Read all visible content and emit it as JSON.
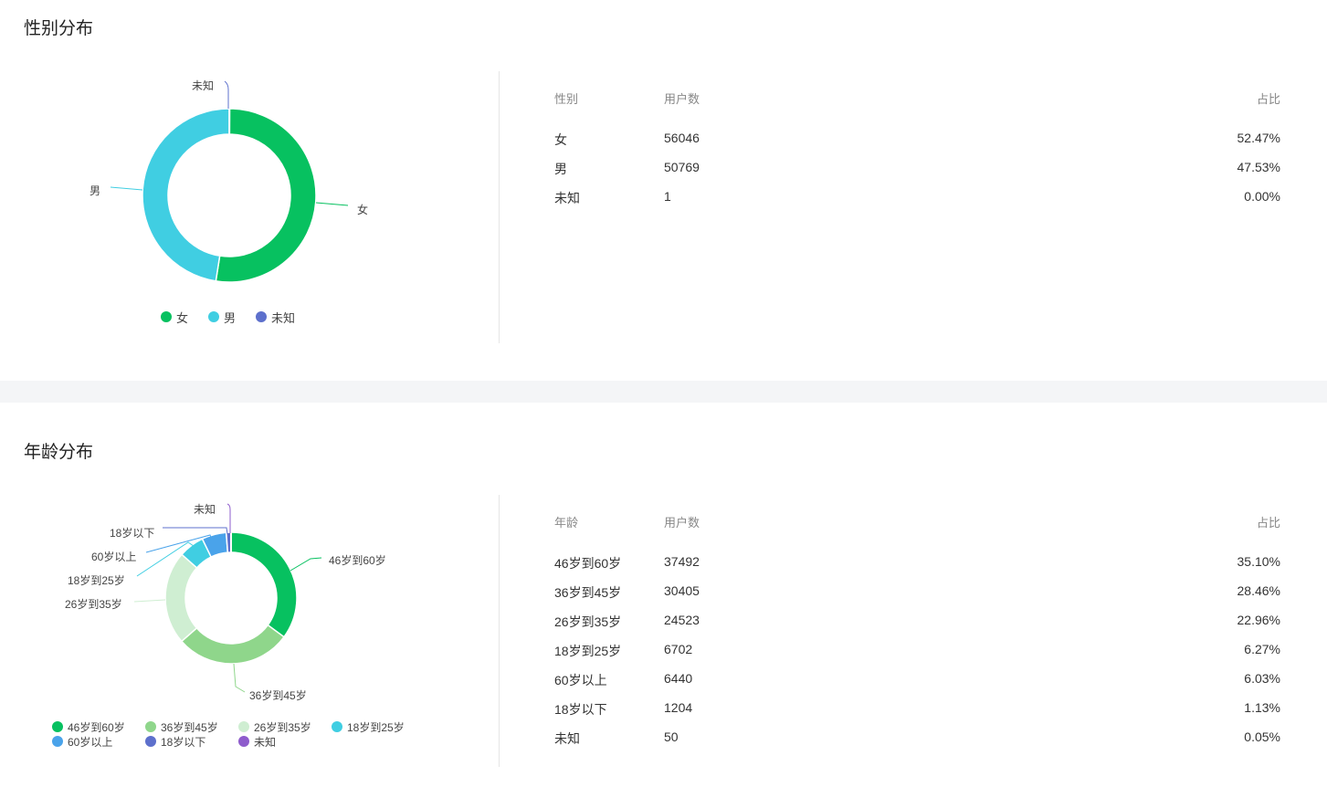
{
  "gender": {
    "title": "性别分布",
    "headers": [
      "性别",
      "用户数",
      "占比"
    ],
    "rows": [
      {
        "name": "女",
        "users": "56046",
        "pct": "52.47%",
        "value": 56046,
        "color": "#07c160"
      },
      {
        "name": "男",
        "users": "50769",
        "pct": "47.53%",
        "value": 50769,
        "color": "#40cee2"
      },
      {
        "name": "未知",
        "users": "1",
        "pct": "0.00%",
        "value": 1,
        "color": "#5d70cc"
      }
    ]
  },
  "age": {
    "title": "年龄分布",
    "headers": [
      "年龄",
      "用户数",
      "占比"
    ],
    "rows": [
      {
        "name": "46岁到60岁",
        "users": "37492",
        "pct": "35.10%",
        "value": 37492,
        "color": "#07c160"
      },
      {
        "name": "36岁到45岁",
        "users": "30405",
        "pct": "28.46%",
        "value": 30405,
        "color": "#8fd68b"
      },
      {
        "name": "26岁到35岁",
        "users": "24523",
        "pct": "22.96%",
        "value": 24523,
        "color": "#cfeed2"
      },
      {
        "name": "18岁到25岁",
        "users": "6702",
        "pct": "6.27%",
        "value": 6702,
        "color": "#40cee2"
      },
      {
        "name": "60岁以上",
        "users": "6440",
        "pct": "6.03%",
        "value": 6440,
        "color": "#4aa3ea"
      },
      {
        "name": "18岁以下",
        "users": "1204",
        "pct": "1.13%",
        "value": 1204,
        "color": "#5d70cc"
      },
      {
        "name": "未知",
        "users": "50",
        "pct": "0.05%",
        "value": 50,
        "color": "#8e5ccc"
      }
    ]
  }
}
